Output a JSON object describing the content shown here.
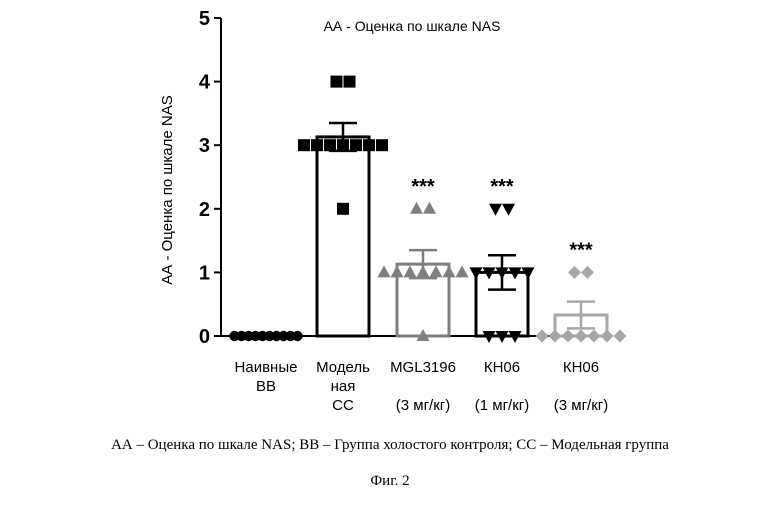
{
  "chart_data": {
    "type": "bar",
    "title": "АА - Оценка по шкале NAS",
    "xlabel": "",
    "ylabel": "АА - Оценка по шкале NAS",
    "ylim": [
      0,
      5
    ],
    "yticks": [
      0,
      1,
      2,
      3,
      4,
      5
    ],
    "grid": false,
    "legend": "none",
    "categories": [
      [
        "Наивные",
        "ВВ"
      ],
      [
        "Модель",
        "ная",
        "СС"
      ],
      [
        "MGL3196",
        "",
        "(3 мг/кг)"
      ],
      [
        "КН06",
        "",
        "(1 мг/кг)"
      ],
      [
        "КН06",
        "",
        "(3 мг/кг)"
      ]
    ],
    "values": [
      0.0,
      3.13,
      1.13,
      1.0,
      0.33
    ],
    "error_sem": [
      0.0,
      0.22,
      0.22,
      0.27,
      0.21
    ],
    "significance": [
      "",
      "",
      "***",
      "***",
      "***"
    ],
    "colors": [
      "#000000",
      "#000000",
      "#7f7f7f",
      "#000000",
      "#a6a6a6"
    ],
    "marker": [
      "circle",
      "square",
      "triangle-up",
      "triangle-down",
      "diamond"
    ],
    "points": [
      [
        0,
        0,
        0,
        0,
        0,
        0,
        0,
        0,
        0,
        0
      ],
      [
        4,
        4,
        3,
        3,
        3,
        3,
        3,
        3,
        3,
        2
      ],
      [
        2,
        2,
        1,
        1,
        1,
        1,
        1,
        1,
        1,
        0
      ],
      [
        2,
        2,
        1,
        1,
        1,
        1,
        1,
        0,
        0,
        0
      ],
      [
        1,
        1,
        0,
        0,
        0,
        0,
        0,
        0,
        0
      ]
    ]
  },
  "caption": {
    "legend_text": "АА – Оценка по шкале NAS;  ВВ – Группа холостого контроля;  СС – Модельная группа",
    "figure_label": "Фиг. 2"
  }
}
